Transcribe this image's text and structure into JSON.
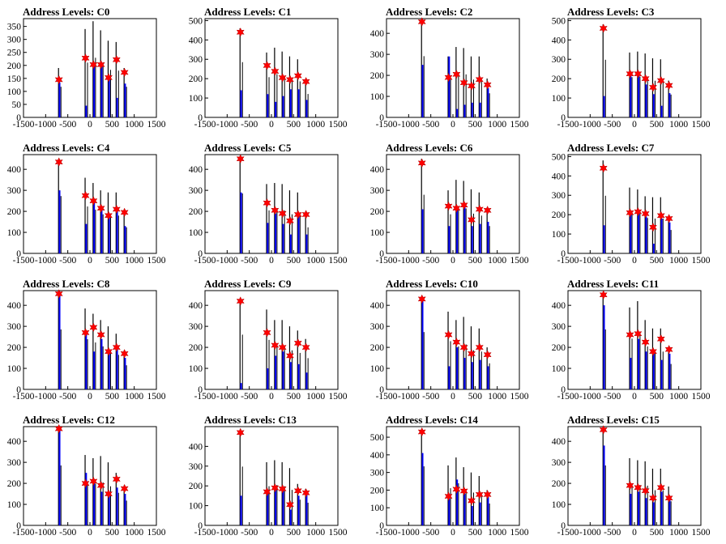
{
  "chart_data": [
    {
      "type": "bar",
      "title": "Address Levels: C0",
      "xlim": [
        -1500,
        1500
      ],
      "ylim": [
        0,
        380
      ],
      "xticks": [
        -1500,
        -1000,
        -500,
        0,
        500,
        1000,
        1500
      ],
      "yticks": [
        0,
        50,
        100,
        150,
        200,
        250,
        300,
        350
      ],
      "clusters": [
        {
          "x": -700,
          "black": 190,
          "blue": 135,
          "marker": 145
        },
        {
          "x": -100,
          "black": 340,
          "blue": 45,
          "marker": 228
        },
        {
          "x": 80,
          "black": 370,
          "blue": 205,
          "marker": 203
        },
        {
          "x": 250,
          "black": 335,
          "blue": 200,
          "marker": 203
        },
        {
          "x": 420,
          "black": 295,
          "blue": 150,
          "marker": 153
        },
        {
          "x": 600,
          "black": 290,
          "blue": 75,
          "marker": 222
        },
        {
          "x": 780,
          "black": 190,
          "blue": 130,
          "marker": 173
        }
      ]
    },
    {
      "type": "bar",
      "title": "Address Levels: C1",
      "xlim": [
        -1500,
        1500
      ],
      "ylim": [
        0,
        510
      ],
      "xticks": [
        -1500,
        -1000,
        -500,
        0,
        500,
        1000,
        1500
      ],
      "yticks": [
        0,
        100,
        200,
        300,
        400,
        500
      ],
      "clusters": [
        {
          "x": -700,
          "black": 460,
          "blue": 140,
          "marker": 440
        },
        {
          "x": -100,
          "black": 335,
          "blue": 120,
          "marker": 268
        },
        {
          "x": 80,
          "black": 360,
          "blue": 80,
          "marker": 238
        },
        {
          "x": 250,
          "black": 340,
          "blue": 110,
          "marker": 205
        },
        {
          "x": 420,
          "black": 315,
          "blue": 145,
          "marker": 195
        },
        {
          "x": 600,
          "black": 300,
          "blue": 145,
          "marker": 215
        },
        {
          "x": 780,
          "black": 195,
          "blue": 90,
          "marker": 185
        }
      ]
    },
    {
      "type": "bar",
      "title": "Address Levels: C2",
      "xlim": [
        -1500,
        1500
      ],
      "ylim": [
        0,
        470
      ],
      "xticks": [
        -1500,
        -1000,
        -500,
        0,
        500,
        1000,
        1500
      ],
      "yticks": [
        0,
        100,
        200,
        300,
        400
      ],
      "clusters": [
        {
          "x": -700,
          "black": 470,
          "blue": 250,
          "marker": 455
        },
        {
          "x": -100,
          "black": 290,
          "blue": 290,
          "marker": 190
        },
        {
          "x": 80,
          "black": 335,
          "blue": 40,
          "marker": 205
        },
        {
          "x": 250,
          "black": 330,
          "blue": 60,
          "marker": 165
        },
        {
          "x": 420,
          "black": 290,
          "blue": 70,
          "marker": 150
        },
        {
          "x": 600,
          "black": 290,
          "blue": 70,
          "marker": 180
        },
        {
          "x": 780,
          "black": 185,
          "blue": 140,
          "marker": 155
        }
      ]
    },
    {
      "type": "bar",
      "title": "Address Levels: C3",
      "xlim": [
        -1500,
        1500
      ],
      "ylim": [
        0,
        510
      ],
      "xticks": [
        -1500,
        -1000,
        -500,
        0,
        500,
        1000,
        1500
      ],
      "yticks": [
        0,
        100,
        200,
        300,
        400,
        500
      ],
      "clusters": [
        {
          "x": -700,
          "black": 480,
          "blue": 110,
          "marker": 460
        },
        {
          "x": -100,
          "black": 335,
          "blue": 220,
          "marker": 225
        },
        {
          "x": 80,
          "black": 340,
          "blue": 220,
          "marker": 225
        },
        {
          "x": 250,
          "black": 330,
          "blue": 170,
          "marker": 200
        },
        {
          "x": 420,
          "black": 305,
          "blue": 120,
          "marker": 155
        },
        {
          "x": 600,
          "black": 300,
          "blue": 60,
          "marker": 190
        },
        {
          "x": 780,
          "black": 190,
          "blue": 125,
          "marker": 165
        }
      ]
    },
    {
      "type": "bar",
      "title": "Address Levels: C4",
      "xlim": [
        -1500,
        1500
      ],
      "ylim": [
        0,
        470
      ],
      "xticks": [
        -1500,
        -1000,
        -500,
        0,
        500,
        1000,
        1500
      ],
      "yticks": [
        0,
        100,
        200,
        300,
        400
      ],
      "clusters": [
        {
          "x": -700,
          "black": 440,
          "blue": 300,
          "marker": 435
        },
        {
          "x": -100,
          "black": 360,
          "blue": 140,
          "marker": 275
        },
        {
          "x": 80,
          "black": 335,
          "blue": 260,
          "marker": 250
        },
        {
          "x": 250,
          "black": 300,
          "blue": 210,
          "marker": 215
        },
        {
          "x": 420,
          "black": 290,
          "blue": 175,
          "marker": 180
        },
        {
          "x": 600,
          "black": 290,
          "blue": 200,
          "marker": 210
        },
        {
          "x": 780,
          "black": 200,
          "blue": 130,
          "marker": 195
        }
      ]
    },
    {
      "type": "bar",
      "title": "Address Levels: C5",
      "xlim": [
        -1500,
        1500
      ],
      "ylim": [
        0,
        470
      ],
      "xticks": [
        -1500,
        -1000,
        -500,
        0,
        500,
        1000,
        1500
      ],
      "yticks": [
        0,
        100,
        200,
        300,
        400
      ],
      "clusters": [
        {
          "x": -700,
          "black": 460,
          "blue": 290,
          "marker": 450
        },
        {
          "x": -100,
          "black": 330,
          "blue": 145,
          "marker": 240
        },
        {
          "x": 80,
          "black": 335,
          "blue": 190,
          "marker": 205
        },
        {
          "x": 250,
          "black": 330,
          "blue": 140,
          "marker": 190
        },
        {
          "x": 420,
          "black": 300,
          "blue": 90,
          "marker": 155
        },
        {
          "x": 600,
          "black": 290,
          "blue": 190,
          "marker": 185
        },
        {
          "x": 780,
          "black": 200,
          "blue": 90,
          "marker": 185
        }
      ]
    },
    {
      "type": "bar",
      "title": "Address Levels: C6",
      "xlim": [
        -1500,
        1500
      ],
      "ylim": [
        0,
        470
      ],
      "xticks": [
        -1500,
        -1000,
        -500,
        0,
        500,
        1000,
        1500
      ],
      "yticks": [
        0,
        100,
        200,
        300,
        400
      ],
      "clusters": [
        {
          "x": -700,
          "black": 450,
          "blue": 210,
          "marker": 430
        },
        {
          "x": -100,
          "black": 300,
          "blue": 130,
          "marker": 225
        },
        {
          "x": 80,
          "black": 350,
          "blue": 210,
          "marker": 215
        },
        {
          "x": 250,
          "black": 345,
          "blue": 235,
          "marker": 230
        },
        {
          "x": 420,
          "black": 305,
          "blue": 130,
          "marker": 160
        },
        {
          "x": 600,
          "black": 290,
          "blue": 140,
          "marker": 210
        },
        {
          "x": 780,
          "black": 210,
          "blue": 150,
          "marker": 205
        }
      ]
    },
    {
      "type": "bar",
      "title": "Address Levels: C7",
      "xlim": [
        -1500,
        1500
      ],
      "ylim": [
        0,
        510
      ],
      "xticks": [
        -1500,
        -1000,
        -500,
        0,
        500,
        1000,
        1500
      ],
      "yticks": [
        0,
        100,
        200,
        300,
        400,
        500
      ],
      "clusters": [
        {
          "x": -700,
          "black": 480,
          "blue": 145,
          "marker": 440
        },
        {
          "x": -100,
          "black": 340,
          "blue": 220,
          "marker": 210
        },
        {
          "x": 80,
          "black": 330,
          "blue": 210,
          "marker": 215
        },
        {
          "x": 250,
          "black": 295,
          "blue": 190,
          "marker": 205
        },
        {
          "x": 420,
          "black": 290,
          "blue": 50,
          "marker": 135
        },
        {
          "x": 600,
          "black": 290,
          "blue": 180,
          "marker": 195
        },
        {
          "x": 780,
          "black": 195,
          "blue": 160,
          "marker": 180
        }
      ]
    },
    {
      "type": "bar",
      "title": "Address Levels: C8",
      "xlim": [
        -1500,
        1500
      ],
      "ylim": [
        0,
        470
      ],
      "xticks": [
        -1500,
        -1000,
        -500,
        0,
        500,
        1000,
        1500
      ],
      "yticks": [
        0,
        100,
        200,
        300,
        400
      ],
      "clusters": [
        {
          "x": -700,
          "black": 460,
          "blue": 460,
          "marker": 455
        },
        {
          "x": -100,
          "black": 385,
          "blue": 260,
          "marker": 270
        },
        {
          "x": 80,
          "black": 360,
          "blue": 180,
          "marker": 295
        },
        {
          "x": 250,
          "black": 330,
          "blue": 240,
          "marker": 260
        },
        {
          "x": 420,
          "black": 300,
          "blue": 180,
          "marker": 180
        },
        {
          "x": 600,
          "black": 265,
          "blue": 190,
          "marker": 200
        },
        {
          "x": 780,
          "black": 185,
          "blue": 150,
          "marker": 170
        }
      ]
    },
    {
      "type": "bar",
      "title": "Address Levels: C9",
      "xlim": [
        -1500,
        1500
      ],
      "ylim": [
        0,
        470
      ],
      "xticks": [
        -1500,
        -1000,
        -500,
        0,
        500,
        1000,
        1500
      ],
      "yticks": [
        0,
        100,
        200,
        300,
        400
      ],
      "clusters": [
        {
          "x": -700,
          "black": 420,
          "blue": 30,
          "marker": 420
        },
        {
          "x": -100,
          "black": 380,
          "blue": 100,
          "marker": 270
        },
        {
          "x": 80,
          "black": 330,
          "blue": 160,
          "marker": 210
        },
        {
          "x": 250,
          "black": 330,
          "blue": 180,
          "marker": 200
        },
        {
          "x": 420,
          "black": 300,
          "blue": 130,
          "marker": 160
        },
        {
          "x": 600,
          "black": 280,
          "blue": 120,
          "marker": 220
        },
        {
          "x": 780,
          "black": 240,
          "blue": 80,
          "marker": 200
        }
      ]
    },
    {
      "type": "bar",
      "title": "Address Levels: C10",
      "xlim": [
        -1500,
        1500
      ],
      "ylim": [
        0,
        470
      ],
      "xticks": [
        -1500,
        -1000,
        -500,
        0,
        500,
        1000,
        1500
      ],
      "yticks": [
        0,
        100,
        200,
        300,
        400
      ],
      "clusters": [
        {
          "x": -700,
          "black": 440,
          "blue": 420,
          "marker": 430
        },
        {
          "x": -100,
          "black": 370,
          "blue": 110,
          "marker": 260
        },
        {
          "x": 80,
          "black": 330,
          "blue": 200,
          "marker": 225
        },
        {
          "x": 250,
          "black": 345,
          "blue": 150,
          "marker": 200
        },
        {
          "x": 420,
          "black": 300,
          "blue": 130,
          "marker": 170
        },
        {
          "x": 600,
          "black": 290,
          "blue": 140,
          "marker": 200
        },
        {
          "x": 780,
          "black": 200,
          "blue": 110,
          "marker": 165
        }
      ]
    },
    {
      "type": "bar",
      "title": "Address Levels: C11",
      "xlim": [
        -1500,
        1500
      ],
      "ylim": [
        0,
        470
      ],
      "xticks": [
        -1500,
        -1000,
        -500,
        0,
        500,
        1000,
        1500
      ],
      "yticks": [
        0,
        100,
        200,
        300,
        400
      ],
      "clusters": [
        {
          "x": -700,
          "black": 460,
          "blue": 400,
          "marker": 450
        },
        {
          "x": -100,
          "black": 390,
          "blue": 150,
          "marker": 260
        },
        {
          "x": 80,
          "black": 420,
          "blue": 240,
          "marker": 265
        },
        {
          "x": 250,
          "black": 330,
          "blue": 180,
          "marker": 225
        },
        {
          "x": 420,
          "black": 290,
          "blue": 170,
          "marker": 180
        },
        {
          "x": 600,
          "black": 290,
          "blue": 140,
          "marker": 240
        },
        {
          "x": 780,
          "black": 195,
          "blue": 170,
          "marker": 190
        }
      ]
    },
    {
      "type": "bar",
      "title": "Address Levels: C12",
      "xlim": [
        -1500,
        1500
      ],
      "ylim": [
        0,
        470
      ],
      "xticks": [
        -1500,
        -1000,
        -500,
        0,
        500,
        1000,
        1500
      ],
      "yticks": [
        0,
        100,
        200,
        300,
        400
      ],
      "clusters": [
        {
          "x": -700,
          "black": 460,
          "blue": 460,
          "marker": 460
        },
        {
          "x": -100,
          "black": 335,
          "blue": 250,
          "marker": 200
        },
        {
          "x": 80,
          "black": 320,
          "blue": 200,
          "marker": 210
        },
        {
          "x": 250,
          "black": 330,
          "blue": 160,
          "marker": 190
        },
        {
          "x": 420,
          "black": 300,
          "blue": 140,
          "marker": 150
        },
        {
          "x": 600,
          "black": 250,
          "blue": 180,
          "marker": 220
        },
        {
          "x": 780,
          "black": 190,
          "blue": 150,
          "marker": 175
        }
      ]
    },
    {
      "type": "bar",
      "title": "Address Levels: C13",
      "xlim": [
        -1500,
        1500
      ],
      "ylim": [
        0,
        500
      ],
      "xticks": [
        -1500,
        -1000,
        -500,
        0,
        500,
        1000,
        1500
      ],
      "yticks": [
        0,
        100,
        200,
        300,
        400
      ],
      "clusters": [
        {
          "x": -700,
          "black": 480,
          "blue": 150,
          "marker": 470
        },
        {
          "x": -100,
          "black": 320,
          "blue": 170,
          "marker": 170
        },
        {
          "x": 80,
          "black": 330,
          "blue": 190,
          "marker": 190
        },
        {
          "x": 250,
          "black": 320,
          "blue": 180,
          "marker": 185
        },
        {
          "x": 420,
          "black": 290,
          "blue": 80,
          "marker": 105
        },
        {
          "x": 600,
          "black": 210,
          "blue": 150,
          "marker": 175
        },
        {
          "x": 780,
          "black": 185,
          "blue": 160,
          "marker": 165
        }
      ]
    },
    {
      "type": "bar",
      "title": "Address Levels: C14",
      "xlim": [
        -1500,
        1500
      ],
      "ylim": [
        0,
        560
      ],
      "xticks": [
        -1500,
        -1000,
        -500,
        0,
        500,
        1000,
        1500
      ],
      "yticks": [
        0,
        100,
        200,
        300,
        400,
        500
      ],
      "clusters": [
        {
          "x": -700,
          "black": 540,
          "blue": 410,
          "marker": 530
        },
        {
          "x": -100,
          "black": 340,
          "blue": 150,
          "marker": 165
        },
        {
          "x": 80,
          "black": 385,
          "blue": 260,
          "marker": 205
        },
        {
          "x": 250,
          "black": 330,
          "blue": 180,
          "marker": 195
        },
        {
          "x": 420,
          "black": 300,
          "blue": 110,
          "marker": 140
        },
        {
          "x": 600,
          "black": 280,
          "blue": 130,
          "marker": 175
        },
        {
          "x": 780,
          "black": 200,
          "blue": 160,
          "marker": 175
        }
      ]
    },
    {
      "type": "bar",
      "title": "Address Levels: C15",
      "xlim": [
        -1500,
        1500
      ],
      "ylim": [
        0,
        470
      ],
      "xticks": [
        -1500,
        -1000,
        -500,
        0,
        500,
        1000,
        1500
      ],
      "yticks": [
        0,
        100,
        200,
        300,
        400
      ],
      "clusters": [
        {
          "x": -700,
          "black": 460,
          "blue": 380,
          "marker": 455
        },
        {
          "x": -100,
          "black": 320,
          "blue": 150,
          "marker": 190
        },
        {
          "x": 80,
          "black": 310,
          "blue": 160,
          "marker": 180
        },
        {
          "x": 250,
          "black": 305,
          "blue": 130,
          "marker": 165
        },
        {
          "x": 420,
          "black": 270,
          "blue": 110,
          "marker": 130
        },
        {
          "x": 600,
          "black": 270,
          "blue": 160,
          "marker": 180
        },
        {
          "x": 780,
          "black": 185,
          "blue": 140,
          "marker": 130
        }
      ]
    }
  ],
  "colors": {
    "black_bar": "#000000",
    "blue_bar": "#0000ff",
    "marker": "#ff0000"
  }
}
